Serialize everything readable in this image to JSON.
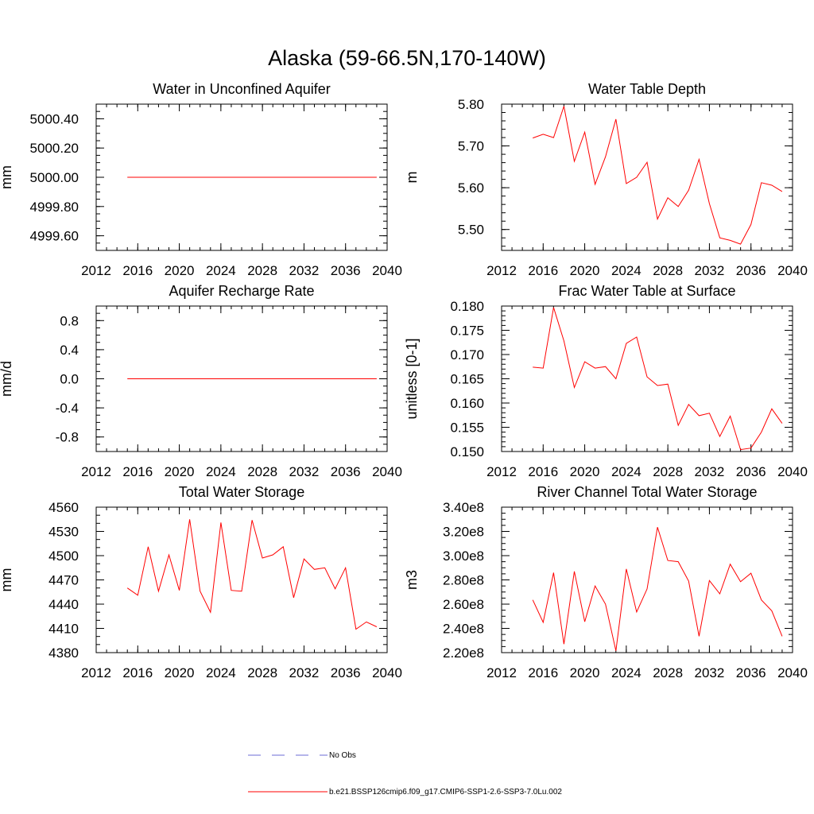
{
  "title": "Alaska (59-66.5N,170-140W)",
  "colors": {
    "model": "#ff0000",
    "obs": "#6b6bd6",
    "axis": "#000000"
  },
  "legend": {
    "obs_label": "No Obs",
    "model_label": "b.e21.BSSP126cmip6.f09_g17.CMIP6-SSP1-2.6-SSP3-7.0Lu.002"
  },
  "chart_data": [
    {
      "type": "line",
      "title": "Water in Unconfined Aquifer",
      "xlabel": "",
      "ylabel": "mm",
      "xlim": [
        2012,
        2040
      ],
      "xticks": [
        2012,
        2016,
        2020,
        2024,
        2028,
        2032,
        2036,
        2040
      ],
      "xtick_labels": [
        "2012",
        "2016",
        "2020",
        "2024",
        "2028",
        "2032",
        "2036",
        "2040"
      ],
      "ylim": [
        4999.5,
        5000.5
      ],
      "yticks": [
        4999.6,
        4999.8,
        5000.0,
        5000.2,
        5000.4
      ],
      "ytick_labels": [
        "4999.60",
        "4999.80",
        "5000.00",
        "5000.20",
        "5000.40"
      ],
      "yminor_step": 0.05,
      "grid": false,
      "series": [
        {
          "name": "b.e21.BSSP126cmip6.f09_g17.CMIP6-SSP1-2.6-SSP3-7.0Lu.002",
          "x": [
            2015,
            2016,
            2017,
            2018,
            2019,
            2020,
            2021,
            2022,
            2023,
            2024,
            2025,
            2026,
            2027,
            2028,
            2029,
            2030,
            2031,
            2032,
            2033,
            2034,
            2035,
            2036,
            2037,
            2038,
            2039
          ],
          "y": [
            5000,
            5000,
            5000,
            5000,
            5000,
            5000,
            5000,
            5000,
            5000,
            5000,
            5000,
            5000,
            5000,
            5000,
            5000,
            5000,
            5000,
            5000,
            5000,
            5000,
            5000,
            5000,
            5000,
            5000,
            5000
          ]
        }
      ]
    },
    {
      "type": "line",
      "title": "Water Table Depth",
      "xlabel": "",
      "ylabel": "m",
      "xlim": [
        2012,
        2040
      ],
      "xticks": [
        2012,
        2016,
        2020,
        2024,
        2028,
        2032,
        2036,
        2040
      ],
      "xtick_labels": [
        "2012",
        "2016",
        "2020",
        "2024",
        "2028",
        "2032",
        "2036",
        "2040"
      ],
      "ylim": [
        5.45,
        5.8
      ],
      "yticks": [
        5.5,
        5.6,
        5.7,
        5.8
      ],
      "ytick_labels": [
        "5.50",
        "5.60",
        "5.70",
        "5.80"
      ],
      "yminor_step": 0.02,
      "grid": false,
      "series": [
        {
          "name": "b.e21.BSSP126cmip6.f09_g17.CMIP6-SSP1-2.6-SSP3-7.0Lu.002",
          "x": [
            2015,
            2016,
            2017,
            2018,
            2019,
            2020,
            2021,
            2022,
            2023,
            2024,
            2025,
            2026,
            2027,
            2028,
            2029,
            2030,
            2031,
            2032,
            2033,
            2034,
            2035,
            2036,
            2037,
            2038,
            2039
          ],
          "y": [
            5.719,
            5.728,
            5.72,
            5.795,
            5.663,
            5.733,
            5.608,
            5.674,
            5.764,
            5.61,
            5.625,
            5.661,
            5.525,
            5.576,
            5.555,
            5.594,
            5.668,
            5.562,
            5.48,
            5.474,
            5.465,
            5.512,
            5.612,
            5.606,
            5.591
          ]
        }
      ]
    },
    {
      "type": "line",
      "title": "Aquifer Recharge Rate",
      "xlabel": "",
      "ylabel": "mm/d",
      "xlim": [
        2012,
        2040
      ],
      "xticks": [
        2012,
        2016,
        2020,
        2024,
        2028,
        2032,
        2036,
        2040
      ],
      "xtick_labels": [
        "2012",
        "2016",
        "2020",
        "2024",
        "2028",
        "2032",
        "2036",
        "2040"
      ],
      "ylim": [
        -1.0,
        1.0
      ],
      "yticks": [
        -0.8,
        -0.4,
        0.0,
        0.4,
        0.8
      ],
      "ytick_labels": [
        "-0.8",
        "-0.4",
        "0.0",
        "0.4",
        "0.8"
      ],
      "yminor_step": 0.1,
      "grid": false,
      "series": [
        {
          "name": "b.e21.BSSP126cmip6.f09_g17.CMIP6-SSP1-2.6-SSP3-7.0Lu.002",
          "x": [
            2015,
            2016,
            2017,
            2018,
            2019,
            2020,
            2021,
            2022,
            2023,
            2024,
            2025,
            2026,
            2027,
            2028,
            2029,
            2030,
            2031,
            2032,
            2033,
            2034,
            2035,
            2036,
            2037,
            2038,
            2039
          ],
          "y": [
            0,
            0,
            0,
            0,
            0,
            0,
            0,
            0,
            0,
            0,
            0,
            0,
            0,
            0,
            0,
            0,
            0,
            0,
            0,
            0,
            0,
            0,
            0,
            0,
            0
          ]
        }
      ]
    },
    {
      "type": "line",
      "title": "Frac Water Table at Surface",
      "xlabel": "",
      "ylabel": "unitless [0-1]",
      "xlim": [
        2012,
        2040
      ],
      "xticks": [
        2012,
        2016,
        2020,
        2024,
        2028,
        2032,
        2036,
        2040
      ],
      "xtick_labels": [
        "2012",
        "2016",
        "2020",
        "2024",
        "2028",
        "2032",
        "2036",
        "2040"
      ],
      "ylim": [
        0.15,
        0.18
      ],
      "yticks": [
        0.15,
        0.155,
        0.16,
        0.165,
        0.17,
        0.175,
        0.18
      ],
      "ytick_labels": [
        "0.150",
        "0.155",
        "0.160",
        "0.165",
        "0.170",
        "0.175",
        "0.180"
      ],
      "yminor_step": 0.001,
      "grid": false,
      "series": [
        {
          "name": "b.e21.BSSP126cmip6.f09_g17.CMIP6-SSP1-2.6-SSP3-7.0Lu.002",
          "x": [
            2015,
            2016,
            2017,
            2018,
            2019,
            2020,
            2021,
            2022,
            2023,
            2024,
            2025,
            2026,
            2027,
            2028,
            2029,
            2030,
            2031,
            2032,
            2033,
            2034,
            2035,
            2036,
            2037,
            2038,
            2039
          ],
          "y": [
            0.1674,
            0.1672,
            0.1797,
            0.1728,
            0.1632,
            0.1685,
            0.1672,
            0.1675,
            0.165,
            0.1723,
            0.1736,
            0.1654,
            0.1636,
            0.1639,
            0.1554,
            0.1597,
            0.1574,
            0.1579,
            0.1531,
            0.1573,
            0.1504,
            0.1507,
            0.154,
            0.1588,
            0.1558
          ]
        }
      ]
    },
    {
      "type": "line",
      "title": "Total Water Storage",
      "xlabel": "",
      "ylabel": "mm",
      "xlim": [
        2012,
        2040
      ],
      "xticks": [
        2012,
        2016,
        2020,
        2024,
        2028,
        2032,
        2036,
        2040
      ],
      "xtick_labels": [
        "2012",
        "2016",
        "2020",
        "2024",
        "2028",
        "2032",
        "2036",
        "2040"
      ],
      "ylim": [
        4380,
        4560
      ],
      "yticks": [
        4380,
        4410,
        4440,
        4470,
        4500,
        4530,
        4560
      ],
      "ytick_labels": [
        "4380",
        "4410",
        "4440",
        "4470",
        "4500",
        "4530",
        "4560"
      ],
      "yminor_step": 10,
      "grid": false,
      "series": [
        {
          "name": "b.e21.BSSP126cmip6.f09_g17.CMIP6-SSP1-2.6-SSP3-7.0Lu.002",
          "x": [
            2015,
            2016,
            2017,
            2018,
            2019,
            2020,
            2021,
            2022,
            2023,
            2024,
            2025,
            2026,
            2027,
            2028,
            2029,
            2030,
            2031,
            2032,
            2033,
            2034,
            2035,
            2036,
            2037,
            2038,
            2039
          ],
          "y": [
            4460,
            4451,
            4511,
            4456,
            4501,
            4457,
            4545,
            4456,
            4430,
            4541,
            4457,
            4456,
            4544,
            4497,
            4501,
            4511,
            4448,
            4496,
            4483,
            4485,
            4459,
            4485,
            4409,
            4418,
            4412
          ]
        }
      ]
    },
    {
      "type": "line",
      "title": "River Channel Total Water Storage",
      "xlabel": "",
      "ylabel": "m3",
      "xlim": [
        2012,
        2040
      ],
      "xticks": [
        2012,
        2016,
        2020,
        2024,
        2028,
        2032,
        2036,
        2040
      ],
      "xtick_labels": [
        "2012",
        "2016",
        "2020",
        "2024",
        "2028",
        "2032",
        "2036",
        "2040"
      ],
      "ylim": [
        220000000,
        340000000
      ],
      "yticks": [
        220000000,
        240000000,
        260000000,
        280000000,
        300000000,
        320000000,
        340000000
      ],
      "ytick_labels": [
        "2.20e8",
        "2.40e8",
        "2.60e8",
        "2.80e8",
        "3.00e8",
        "3.20e8",
        "3.40e8"
      ],
      "yminor_step": 5000000,
      "grid": false,
      "series": [
        {
          "name": "b.e21.BSSP126cmip6.f09_g17.CMIP6-SSP1-2.6-SSP3-7.0Lu.002",
          "x": [
            2015,
            2016,
            2017,
            2018,
            2019,
            2020,
            2021,
            2022,
            2023,
            2024,
            2025,
            2026,
            2027,
            2028,
            2029,
            2030,
            2031,
            2032,
            2033,
            2034,
            2035,
            2036,
            2037,
            2038,
            2039
          ],
          "y": [
            263500000,
            245000000,
            286000000,
            227000000,
            287000000,
            245500000,
            275000000,
            260000000,
            221500000,
            289000000,
            253500000,
            272500000,
            323500000,
            296000000,
            295000000,
            279000000,
            233500000,
            279500000,
            268500000,
            293000000,
            278500000,
            285500000,
            263500000,
            254500000,
            233500000
          ]
        }
      ]
    }
  ]
}
